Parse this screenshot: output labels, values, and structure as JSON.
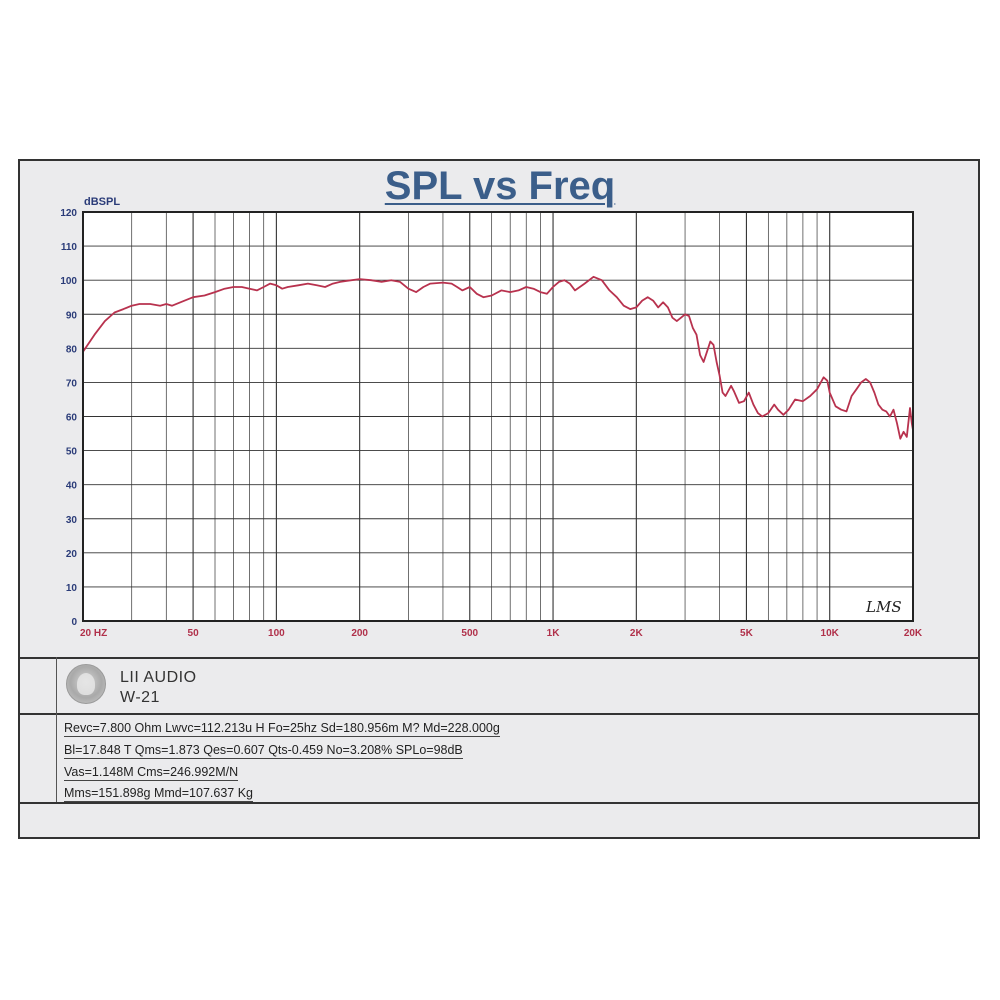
{
  "chart_data": {
    "type": "line",
    "title": "SPL vs Freq",
    "ylabel": "dBSPL",
    "xlabel": "",
    "x_scale": "log",
    "xlim": [
      20,
      20000
    ],
    "ylim": [
      0,
      120
    ],
    "yticks": [
      0,
      10,
      20,
      30,
      40,
      50,
      60,
      70,
      80,
      90,
      100,
      110,
      120
    ],
    "xticks": [
      {
        "value": 20,
        "label": "20  HZ"
      },
      {
        "value": 50,
        "label": "50"
      },
      {
        "value": 100,
        "label": "100"
      },
      {
        "value": 200,
        "label": "200"
      },
      {
        "value": 500,
        "label": "500"
      },
      {
        "value": 1000,
        "label": "1K"
      },
      {
        "value": 2000,
        "label": "2K"
      },
      {
        "value": 5000,
        "label": "5K"
      },
      {
        "value": 10000,
        "label": "10K"
      },
      {
        "value": 20000,
        "label": "20K"
      }
    ],
    "grid": true,
    "watermark": "LMS",
    "series": [
      {
        "color": "#b8324e",
        "points": [
          [
            20,
            79
          ],
          [
            22,
            84
          ],
          [
            24,
            88
          ],
          [
            26,
            90.5
          ],
          [
            28,
            91.5
          ],
          [
            30,
            92.5
          ],
          [
            32,
            93
          ],
          [
            35,
            93
          ],
          [
            38,
            92.5
          ],
          [
            40,
            93
          ],
          [
            42,
            92.5
          ],
          [
            45,
            93.5
          ],
          [
            50,
            95
          ],
          [
            55,
            95.5
          ],
          [
            60,
            96.5
          ],
          [
            65,
            97.5
          ],
          [
            70,
            98
          ],
          [
            75,
            98
          ],
          [
            80,
            97.5
          ],
          [
            85,
            97
          ],
          [
            90,
            98
          ],
          [
            95,
            99
          ],
          [
            100,
            98.5
          ],
          [
            105,
            97.5
          ],
          [
            110,
            98
          ],
          [
            120,
            98.5
          ],
          [
            130,
            99
          ],
          [
            140,
            98.5
          ],
          [
            150,
            98
          ],
          [
            160,
            99
          ],
          [
            170,
            99.5
          ],
          [
            180,
            99.8
          ],
          [
            200,
            100.3
          ],
          [
            220,
            100
          ],
          [
            240,
            99.5
          ],
          [
            260,
            100
          ],
          [
            280,
            99.5
          ],
          [
            300,
            97.5
          ],
          [
            320,
            96.5
          ],
          [
            340,
            98
          ],
          [
            360,
            99
          ],
          [
            400,
            99.3
          ],
          [
            430,
            99
          ],
          [
            450,
            98
          ],
          [
            470,
            97
          ],
          [
            500,
            98
          ],
          [
            530,
            96
          ],
          [
            560,
            95
          ],
          [
            600,
            95.5
          ],
          [
            650,
            97
          ],
          [
            700,
            96.5
          ],
          [
            750,
            97
          ],
          [
            800,
            98
          ],
          [
            850,
            97.5
          ],
          [
            900,
            96.5
          ],
          [
            950,
            96
          ],
          [
            1000,
            98
          ],
          [
            1050,
            99.5
          ],
          [
            1100,
            100
          ],
          [
            1150,
            99
          ],
          [
            1200,
            97
          ],
          [
            1300,
            99
          ],
          [
            1400,
            101
          ],
          [
            1500,
            100
          ],
          [
            1600,
            97
          ],
          [
            1700,
            95
          ],
          [
            1800,
            92.5
          ],
          [
            1900,
            91.5
          ],
          [
            2000,
            92
          ],
          [
            2100,
            94
          ],
          [
            2200,
            95
          ],
          [
            2300,
            94
          ],
          [
            2400,
            92
          ],
          [
            2500,
            93.5
          ],
          [
            2600,
            92
          ],
          [
            2700,
            89
          ],
          [
            2800,
            88
          ],
          [
            2900,
            89
          ],
          [
            3000,
            90
          ],
          [
            3100,
            89.5
          ],
          [
            3200,
            86
          ],
          [
            3300,
            84
          ],
          [
            3400,
            78
          ],
          [
            3500,
            76
          ],
          [
            3600,
            79
          ],
          [
            3700,
            82
          ],
          [
            3800,
            81
          ],
          [
            3900,
            76
          ],
          [
            4000,
            72
          ],
          [
            4100,
            67
          ],
          [
            4200,
            66
          ],
          [
            4400,
            69
          ],
          [
            4500,
            67.5
          ],
          [
            4700,
            64
          ],
          [
            4900,
            64.5
          ],
          [
            5100,
            67
          ],
          [
            5300,
            63.5
          ],
          [
            5500,
            61
          ],
          [
            5700,
            60
          ],
          [
            6000,
            61
          ],
          [
            6300,
            63.5
          ],
          [
            6500,
            62
          ],
          [
            6800,
            60.5
          ],
          [
            7100,
            62
          ],
          [
            7500,
            65
          ],
          [
            8000,
            64.5
          ],
          [
            8500,
            66
          ],
          [
            9000,
            68
          ],
          [
            9500,
            71.5
          ],
          [
            9800,
            70.5
          ],
          [
            10000,
            67
          ],
          [
            10500,
            63
          ],
          [
            11000,
            62
          ],
          [
            11500,
            61.5
          ],
          [
            12000,
            66
          ],
          [
            12500,
            68
          ],
          [
            13000,
            70
          ],
          [
            13500,
            71
          ],
          [
            14000,
            70
          ],
          [
            14500,
            67
          ],
          [
            15000,
            63.5
          ],
          [
            15500,
            62
          ],
          [
            16000,
            61.5
          ],
          [
            16500,
            60
          ],
          [
            17000,
            62
          ],
          [
            17500,
            58
          ],
          [
            18000,
            53.5
          ],
          [
            18500,
            55.5
          ],
          [
            19000,
            54
          ],
          [
            19500,
            62.5
          ],
          [
            19800,
            58
          ],
          [
            20000,
            56
          ]
        ]
      }
    ]
  },
  "brand": {
    "name": "LII AUDIO",
    "model": "W-21"
  },
  "params": [
    "Revc=7.800 Ohm Lwvc=112.213u H  Fo=25hz  Sd=180.956m M? Md=228.000g",
    "Bl=17.848 T Qms=1.873 Qes=0.607 Qts-0.459 No=3.208% SPLo=98dB",
    "Vas=1.148M Cms=246.992M/N",
    "Mms=151.898g Mmd=107.637 Kg"
  ],
  "colors": {
    "curve": "#b8324e",
    "title": "#3b5e8a",
    "axis_text_y": "#2a3b78",
    "axis_text_x": "#b0304a"
  }
}
